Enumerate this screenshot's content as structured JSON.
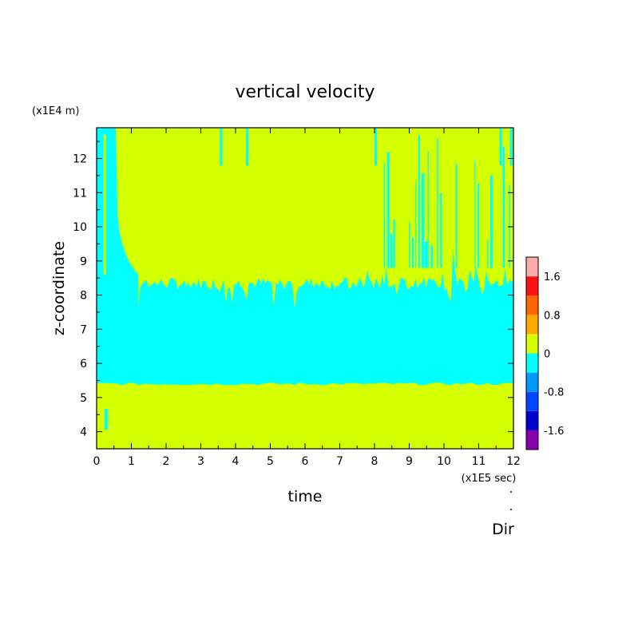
{
  "chart_data": {
    "type": "heatmap",
    "title": "vertical velocity",
    "xlabel": "time",
    "ylabel": "z-coordinate",
    "x_unit_label": "(x1E5 sec)",
    "y_unit_label": "(x1E4 m)",
    "footer_label": "Dir",
    "xlim": [
      0,
      12
    ],
    "ylim": [
      3.5,
      12.9
    ],
    "x_ticks": [
      "0",
      "1",
      "2",
      "3",
      "4",
      "5",
      "6",
      "7",
      "8",
      "9",
      "10",
      "11",
      "12"
    ],
    "y_ticks": [
      "4",
      "5",
      "6",
      "7",
      "8",
      "9",
      "10",
      "11",
      "12"
    ],
    "colorbar": {
      "levels": [
        {
          "from": -2.0,
          "to": -1.6,
          "color": "#8800aa"
        },
        {
          "from": -1.6,
          "to": -1.2,
          "color": "#0000cc"
        },
        {
          "from": -1.2,
          "to": -0.8,
          "color": "#0044ff"
        },
        {
          "from": -0.8,
          "to": -0.4,
          "color": "#0099ff"
        },
        {
          "from": -0.4,
          "to": 0.0,
          "color": "#00ffff"
        },
        {
          "from": 0.0,
          "to": 0.4,
          "color": "#d4ff00"
        },
        {
          "from": 0.4,
          "to": 0.8,
          "color": "#ffaa00"
        },
        {
          "from": 0.8,
          "to": 1.2,
          "color": "#ff6600"
        },
        {
          "from": 1.2,
          "to": 1.6,
          "color": "#ff1111"
        },
        {
          "from": 1.6,
          "to": 2.0,
          "color": "#ffaaaa"
        }
      ],
      "tick_labels": [
        {
          "value": 1.6,
          "label": "1.6"
        },
        {
          "value": 0.8,
          "label": "0.8"
        },
        {
          "value": 0.0,
          "label": "0"
        },
        {
          "value": -0.8,
          "label": "-0.8"
        },
        {
          "value": -1.6,
          "label": "-1.6"
        }
      ]
    },
    "regions": {
      "lower_positive_layer": {
        "z_bottom": 3.5,
        "z_top": 5.4
      },
      "negative_layer": {
        "z_bottom": 5.4,
        "z_top_approx": 8.3
      },
      "upper_positive_layer": {
        "z_bottom_approx": 8.4,
        "z_top": 12.9
      },
      "early_negative_column": {
        "t_start": 0.2,
        "t_end": 0.75
      },
      "late_intermittent_negative_streaks": {
        "t_start": 8.0,
        "t_end": 12.0
      }
    }
  }
}
